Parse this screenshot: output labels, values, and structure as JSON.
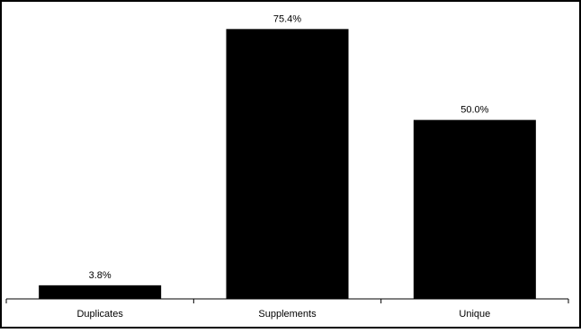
{
  "chart_data": {
    "type": "bar",
    "categories": [
      "Duplicates",
      "Supplements",
      "Unique"
    ],
    "values": [
      3.8,
      75.4,
      50.0
    ],
    "data_labels": [
      "3.8%",
      "75.4%",
      "50.0%"
    ],
    "title": "",
    "xlabel": "",
    "ylabel": "",
    "ylim": [
      0,
      80
    ],
    "bar_color": "#000000",
    "grid": false,
    "legend": "none"
  }
}
